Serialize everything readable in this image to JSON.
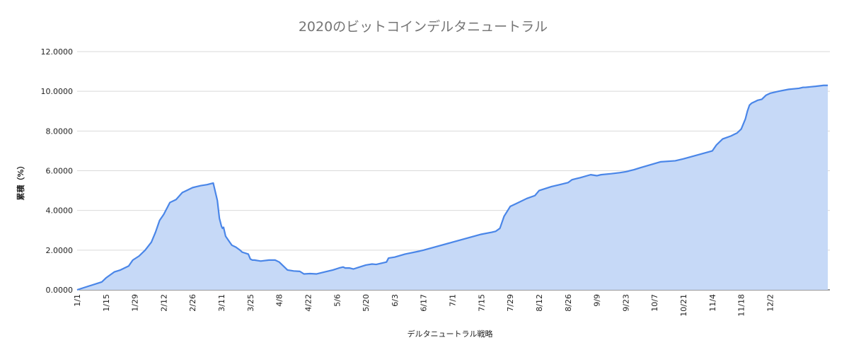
{
  "chart_data": {
    "type": "area",
    "title": "2020のビットコインデルタニュートラル",
    "xlabel": "デルタニュートラル戦略",
    "ylabel": "累積（%）",
    "y_tick_labels": [
      "0.0000",
      "2.0000",
      "4.0000",
      "6.0000",
      "8.0000",
      "10.0000",
      "12.0000"
    ],
    "y_ticks": [
      0,
      2,
      4,
      6,
      8,
      10,
      12
    ],
    "ylim": [
      0,
      12
    ],
    "x_tick_labels": [
      "1/1",
      "1/15",
      "1/29",
      "2/12",
      "2/26",
      "3/11",
      "3/25",
      "4/8",
      "4/22",
      "5/6",
      "5/20",
      "6/3",
      "6/17",
      "7/1",
      "7/15",
      "7/29",
      "8/12",
      "8/26",
      "9/9",
      "9/23",
      "10/7",
      "10/21",
      "11/4",
      "11/18",
      "12/2"
    ],
    "x_tick_days": [
      0,
      14,
      28,
      42,
      56,
      70,
      84,
      98,
      112,
      126,
      140,
      154,
      168,
      182,
      196,
      210,
      224,
      238,
      252,
      266,
      280,
      294,
      308,
      322,
      336
    ],
    "xlim_days": [
      0,
      365
    ],
    "grid": true,
    "legend": "none",
    "series": [
      {
        "line_color": "#4a86e8",
        "fill_color": "#c6d9f7",
        "x": [
          0,
          12,
          14,
          18,
          21,
          25,
          27,
          30,
          33,
          36,
          38,
          40,
          42,
          45,
          48,
          51,
          53,
          55,
          56,
          58,
          60,
          63,
          66,
          68,
          69,
          70,
          70.5,
          71,
          72,
          74,
          75,
          77,
          79,
          80,
          83,
          84,
          85,
          86,
          89,
          93,
          96,
          98,
          100,
          102,
          105,
          108,
          110,
          113,
          116,
          120,
          124,
          127,
          129,
          130,
          132,
          134,
          137,
          140,
          143,
          145,
          150,
          151,
          154,
          159,
          166,
          168,
          175,
          182,
          189,
          196,
          201,
          203,
          205,
          207,
          210,
          211,
          213,
          218,
          222,
          224,
          230,
          234,
          238,
          240,
          242,
          244,
          249,
          252,
          254,
          259,
          263,
          266,
          270,
          273,
          278,
          283,
          290,
          294,
          301,
          308,
          310,
          313,
          317,
          319,
          320,
          322,
          324,
          325,
          326,
          327,
          328,
          329,
          330,
          332,
          334,
          335,
          336,
          340,
          345,
          350,
          352,
          353,
          358,
          362,
          364
        ],
        "y": [
          0,
          0.4,
          0.6,
          0.9,
          1.0,
          1.2,
          1.5,
          1.7,
          2.0,
          2.4,
          2.9,
          3.5,
          3.8,
          4.4,
          4.55,
          4.9,
          5.0,
          5.1,
          5.15,
          5.2,
          5.25,
          5.3,
          5.38,
          4.5,
          3.6,
          3.2,
          3.1,
          3.15,
          2.7,
          2.4,
          2.25,
          2.15,
          2.0,
          1.9,
          1.8,
          1.55,
          1.5,
          1.5,
          1.45,
          1.5,
          1.5,
          1.4,
          1.2,
          1.0,
          0.95,
          0.93,
          0.8,
          0.82,
          0.8,
          0.9,
          1.0,
          1.1,
          1.15,
          1.1,
          1.1,
          1.05,
          1.15,
          1.25,
          1.3,
          1.28,
          1.4,
          1.6,
          1.65,
          1.8,
          1.95,
          2.0,
          2.2,
          2.4,
          2.6,
          2.8,
          2.9,
          2.95,
          3.1,
          3.7,
          4.2,
          4.25,
          4.35,
          4.6,
          4.75,
          5.0,
          5.2,
          5.3,
          5.4,
          5.55,
          5.6,
          5.65,
          5.8,
          5.75,
          5.8,
          5.85,
          5.9,
          5.95,
          6.05,
          6.15,
          6.3,
          6.45,
          6.5,
          6.6,
          6.8,
          7.0,
          7.3,
          7.6,
          7.75,
          7.85,
          7.9,
          8.1,
          8.6,
          9.0,
          9.3,
          9.4,
          9.45,
          9.5,
          9.55,
          9.6,
          9.8,
          9.85,
          9.9,
          10.0,
          10.1,
          10.15,
          10.2,
          10.2,
          10.25,
          10.3,
          10.3
        ]
      }
    ]
  }
}
